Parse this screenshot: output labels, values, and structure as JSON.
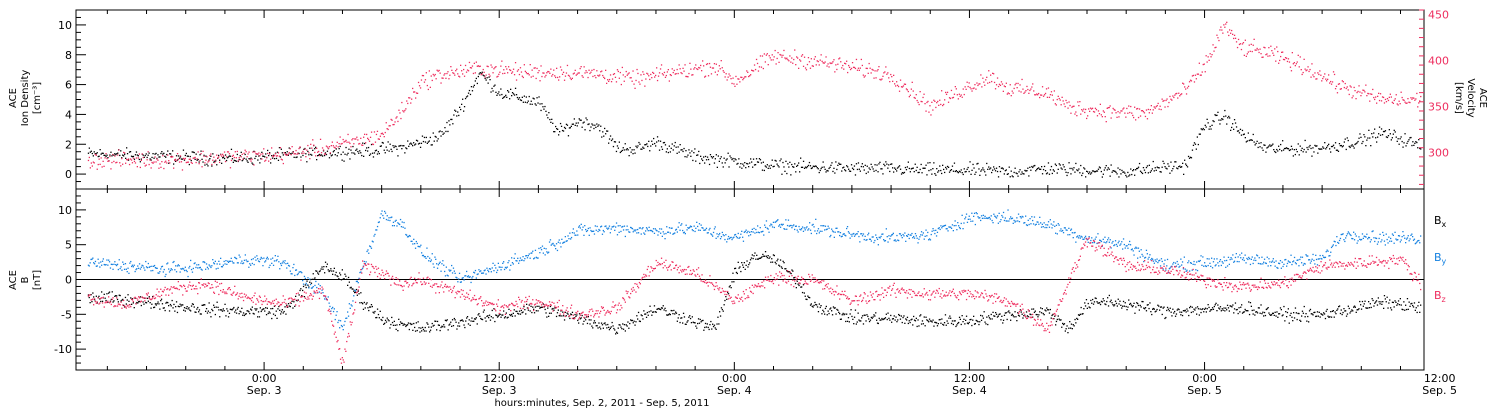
{
  "colors": {
    "density": "#000000",
    "velocity": "#ee2e5f",
    "bx": "#000000",
    "by": "#1581e0",
    "bz": "#ee2e5f"
  },
  "xaxis_title": "hours:minutes, Sep.  2, 2011 - Sep.  5, 2011",
  "chart_data": [
    {
      "type": "scatter",
      "panel": "top",
      "left_axis": {
        "label_lines": [
          "ACE",
          "Ion Density",
          "[cm⁻³]"
        ],
        "range": [
          -1,
          11
        ],
        "ticks": [
          0,
          2,
          4,
          6,
          8,
          10
        ],
        "tick_labels": [
          "0",
          "2",
          "4",
          "6",
          "8",
          "10"
        ]
      },
      "right_axis": {
        "label_lines": [
          "ACE",
          "Velocity",
          "[km/s]"
        ],
        "range": [
          260,
          455
        ],
        "ticks": [
          300,
          350,
          400,
          450
        ],
        "tick_labels": [
          "300",
          "350",
          "400",
          "450"
        ]
      },
      "x_unit": "hours since 2011-09-02 00:00",
      "x_range": [
        14.4,
        83.2
      ],
      "series": [
        {
          "key": "density",
          "axis": "left",
          "color": "#000000",
          "x": [
            15,
            17,
            19,
            21,
            23,
            25,
            27,
            29,
            31,
            33,
            34,
            35,
            36,
            37,
            38,
            39,
            40,
            41,
            42,
            43,
            44,
            46,
            48,
            50,
            52,
            54,
            56,
            58,
            60,
            62,
            64,
            66,
            68,
            70,
            71,
            72,
            73,
            74,
            75,
            76,
            78,
            80,
            81,
            82,
            83
          ],
          "y": [
            1.4,
            1.3,
            1.2,
            1.1,
            1.1,
            1.3,
            1.5,
            1.6,
            1.8,
            2.6,
            4.5,
            6.8,
            5.5,
            5.2,
            4.8,
            2.8,
            3.6,
            3.3,
            1.8,
            1.7,
            2.2,
            1.2,
            0.9,
            0.6,
            0.5,
            0.4,
            0.4,
            0.3,
            0.3,
            0.2,
            0.4,
            0.3,
            0.2,
            0.5,
            0.6,
            3.3,
            3.9,
            2.6,
            1.8,
            1.7,
            1.8,
            2.3,
            2.8,
            2.4,
            1.9
          ]
        },
        {
          "key": "velocity",
          "axis": "right",
          "color": "#ee2e5f",
          "x": [
            15,
            17,
            19,
            21,
            23,
            25,
            27,
            29,
            30,
            31,
            32,
            33,
            35,
            36,
            37,
            39,
            41,
            43,
            45,
            47,
            48,
            50,
            52,
            54,
            56,
            58,
            60,
            61,
            62,
            63,
            64,
            65,
            67,
            69,
            71,
            72,
            73,
            73.5,
            74,
            75,
            77,
            79,
            81,
            83
          ],
          "y": [
            292,
            292,
            292,
            294,
            296,
            298,
            305,
            314,
            320,
            345,
            378,
            385,
            392,
            390,
            388,
            388,
            386,
            380,
            388,
            395,
            378,
            405,
            400,
            393,
            385,
            350,
            373,
            383,
            370,
            368,
            365,
            350,
            345,
            343,
            368,
            395,
            440,
            422,
            414,
            410,
            395,
            372,
            358,
            357
          ]
        }
      ]
    },
    {
      "type": "scatter",
      "panel": "bottom",
      "left_axis": {
        "label_lines": [
          "ACE",
          "B",
          "[nT]"
        ],
        "range": [
          -13,
          13
        ],
        "ticks": [
          -10,
          -5,
          0,
          5,
          10
        ],
        "tick_labels": [
          "-10",
          "-5",
          "0",
          "5",
          "10"
        ]
      },
      "zero_line": true,
      "x_unit": "hours since 2011-09-02 00:00",
      "x_range": [
        14.4,
        83.2
      ],
      "series": [
        {
          "key": "bx",
          "name": "Bx",
          "axis": "left",
          "color": "#000000",
          "x": [
            15,
            17,
            19,
            21,
            23,
            25,
            26,
            27,
            28,
            29,
            30,
            31,
            32,
            34,
            36,
            38,
            40,
            42,
            44,
            46,
            47,
            48,
            49,
            50,
            51,
            52,
            54,
            56,
            58,
            60,
            62,
            64,
            65,
            66,
            67,
            68,
            70,
            72,
            74,
            76,
            78,
            80,
            81,
            82,
            83
          ],
          "y": [
            -2.5,
            -2.8,
            -3.5,
            -4.2,
            -4.5,
            -4.5,
            -1.5,
            2.0,
            0.5,
            -3.0,
            -5.5,
            -6.5,
            -7.0,
            -6.0,
            -5.0,
            -4.0,
            -5.5,
            -7.0,
            -4.0,
            -6.0,
            -7.0,
            1.0,
            3.5,
            3.0,
            0.5,
            -3.5,
            -5.5,
            -5.5,
            -6.0,
            -5.8,
            -5.0,
            -4.5,
            -7.0,
            -3.5,
            -3.0,
            -3.5,
            -4.5,
            -4.2,
            -4.0,
            -5.0,
            -5.0,
            -3.8,
            -3.2,
            -3.5,
            -4.0
          ]
        },
        {
          "key": "by",
          "name": "By",
          "axis": "left",
          "color": "#1581e0",
          "x": [
            15,
            17,
            19,
            21,
            23,
            25,
            27,
            28,
            29,
            30,
            31,
            32,
            34,
            36,
            38,
            40,
            42,
            44,
            46,
            48,
            50,
            52,
            54,
            56,
            58,
            60,
            62,
            64,
            66,
            68,
            70,
            72,
            74,
            76,
            78,
            79,
            80,
            81,
            82,
            83
          ],
          "y": [
            2.5,
            2.0,
            1.5,
            2.0,
            3.0,
            2.5,
            -2.0,
            -7.0,
            2.0,
            9.5,
            8.0,
            4.0,
            0.0,
            2.0,
            4.0,
            7.0,
            7.5,
            7.0,
            7.5,
            6.0,
            8.0,
            7.5,
            6.5,
            6.0,
            6.5,
            9.0,
            9.0,
            8.0,
            6.0,
            5.0,
            2.0,
            2.5,
            3.0,
            2.5,
            3.0,
            6.5,
            6.5,
            6.0,
            6.0,
            6.0
          ]
        },
        {
          "key": "bz",
          "name": "Bz",
          "axis": "left",
          "color": "#ee2e5f",
          "x": [
            15,
            17,
            19,
            21,
            23,
            25,
            27,
            28,
            29,
            30,
            31,
            32,
            34,
            36,
            38,
            40,
            42,
            44,
            46,
            48,
            50,
            52,
            54,
            56,
            58,
            60,
            62,
            64,
            66,
            68,
            70,
            72,
            74,
            76,
            78,
            80,
            82,
            83
          ],
          "y": [
            -2.5,
            -3.5,
            -1.5,
            -0.5,
            -2.5,
            -3.5,
            -1.5,
            -12.0,
            2.0,
            1.0,
            -0.5,
            0.0,
            -2.0,
            -4.0,
            -3.0,
            -5.0,
            -4.0,
            2.5,
            1.0,
            -3.0,
            0.5,
            0.0,
            -3.0,
            -1.5,
            -2.0,
            -2.0,
            -3.0,
            -7.0,
            6.0,
            2.0,
            1.5,
            0.0,
            -1.0,
            -0.5,
            2.0,
            2.5,
            3.0,
            -0.5
          ]
        }
      ]
    }
  ],
  "x_ticks": [
    {
      "x": 24,
      "time": "0:00",
      "date": "Sep. 3"
    },
    {
      "x": 36,
      "time": "12:00",
      "date": "Sep. 3"
    },
    {
      "x": 48,
      "time": "0:00",
      "date": "Sep. 4"
    },
    {
      "x": 60,
      "time": "12:00",
      "date": "Sep. 4"
    },
    {
      "x": 72,
      "time": "0:00",
      "date": "Sep. 5"
    },
    {
      "x": 84,
      "time": "12:00",
      "date": "Sep. 5"
    }
  ],
  "x_minor_step_hours": 2
}
